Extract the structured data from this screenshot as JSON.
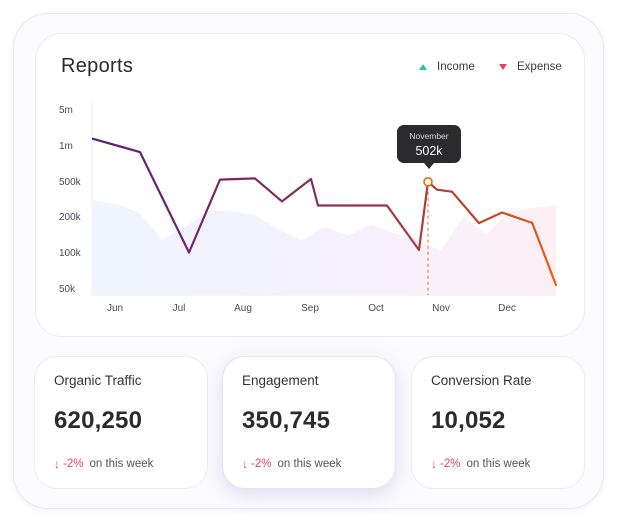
{
  "title": "Reports",
  "legend": [
    {
      "label": "Income",
      "color": "#27c79a",
      "marker": "triangle-up"
    },
    {
      "label": "Expense",
      "color": "#e8425e",
      "marker": "triangle-down"
    }
  ],
  "tooltip": {
    "month": "November",
    "value": "502k"
  },
  "chart_data": {
    "type": "line",
    "title": "Reports",
    "y_ticks": [
      "50k",
      "100k",
      "200k",
      "500k",
      "1m",
      "5m"
    ],
    "x_ticks": [
      "Jun",
      "Jul",
      "Aug",
      "Sep",
      "Oct",
      "Nov",
      "Dec"
    ],
    "series": [
      {
        "name": "Income",
        "values": [
          75,
          72,
          65,
          44,
          54,
          67,
          66,
          63,
          52,
          43,
          54,
          47,
          56,
          49,
          44,
          35,
          62,
          48,
          66,
          69,
          71
        ]
      },
      {
        "name": "Expense",
        "values": [
          1380000,
          890000,
          101000,
          524000,
          536000,
          301000,
          530000,
          270000,
          270000,
          270000,
          106000,
          409000,
          502000,
          388000,
          178000,
          225000,
          180000,
          180000,
          54000
        ]
      }
    ],
    "highlight": {
      "x": "Nov",
      "value": "502k"
    }
  },
  "cards": [
    {
      "label": "Organic Traffic",
      "value": "620,250",
      "pct": "-2%",
      "period": "on this week",
      "active": false
    },
    {
      "label": "Engagement",
      "value": "350,745",
      "pct": "-2%",
      "period": "on this week",
      "active": true
    },
    {
      "label": "Conversion Rate",
      "value": "10,052",
      "pct": "-2%",
      "period": "on this week",
      "active": false
    }
  ]
}
